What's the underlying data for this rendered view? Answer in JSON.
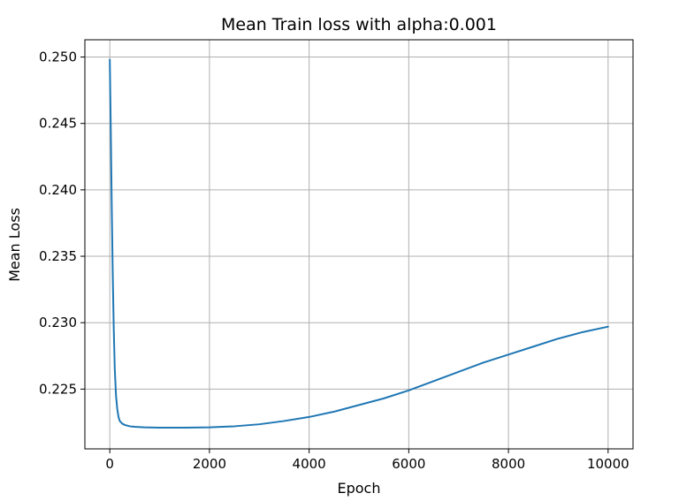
{
  "chart_data": {
    "type": "line",
    "title": "Mean Train loss with alpha:0.001",
    "xlabel": "Epoch",
    "ylabel": "Mean Loss",
    "xlim": [
      -500,
      10500
    ],
    "ylim": [
      0.2205,
      0.2513
    ],
    "xticks": [
      0,
      2000,
      4000,
      6000,
      8000,
      10000
    ],
    "xtick_labels": [
      "0",
      "2000",
      "4000",
      "6000",
      "8000",
      "10000"
    ],
    "yticks": [
      0.225,
      0.23,
      0.235,
      0.24,
      0.245,
      0.25
    ],
    "ytick_labels": [
      "0.225",
      "0.230",
      "0.235",
      "0.240",
      "0.245",
      "0.250"
    ],
    "grid": true,
    "series": [
      {
        "color": "#1f77b4",
        "x": [
          0,
          20,
          40,
          60,
          80,
          100,
          125,
          150,
          175,
          200,
          250,
          300,
          350,
          400,
          450,
          500,
          600,
          700,
          800,
          1000,
          1200,
          1500,
          2000,
          2500,
          3000,
          3500,
          4000,
          4500,
          5000,
          5500,
          6000,
          6500,
          7000,
          7500,
          8000,
          8500,
          9000,
          9500,
          10000
        ],
        "y": [
          0.2498,
          0.2445,
          0.2385,
          0.2335,
          0.2295,
          0.2265,
          0.2245,
          0.2235,
          0.2229,
          0.2226,
          0.2224,
          0.2223,
          0.22225,
          0.2222,
          0.22218,
          0.22216,
          0.22214,
          0.22212,
          0.22211,
          0.2221,
          0.2221,
          0.2221,
          0.22212,
          0.2222,
          0.22235,
          0.2226,
          0.2229,
          0.2233,
          0.2238,
          0.2243,
          0.2249,
          0.2256,
          0.2263,
          0.227,
          0.2276,
          0.2282,
          0.2288,
          0.2293,
          0.2297
        ]
      }
    ]
  }
}
